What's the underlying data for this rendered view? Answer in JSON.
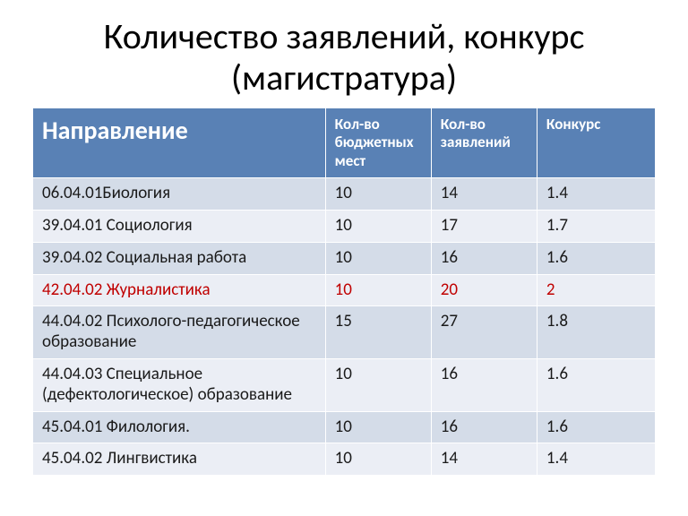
{
  "title": "Количество заявлений, конкурс (магистратура)",
  "table": {
    "columns": [
      "Направление",
      "Кол-во бюджетных мест",
      "Кол-во заявлений",
      "Конкурс"
    ],
    "col_widths_pct": [
      47,
      17,
      17,
      19
    ],
    "header_bg": "#5981b5",
    "header_fg": "#ffffff",
    "header_first_fontsize": 28,
    "header_rest_fontsize": 17,
    "body_fontsize": 19,
    "band_a_bg": "#d4dce8",
    "band_b_bg": "#ebeef5",
    "highlight_color": "#c00000",
    "rows": [
      {
        "cells": [
          "06.04.01Биология",
          "10",
          "14",
          "1.4"
        ],
        "band": "a",
        "highlight": false
      },
      {
        "cells": [
          "39.04.01 Социология",
          "10",
          "17",
          "1.7"
        ],
        "band": "b",
        "highlight": false
      },
      {
        "cells": [
          "39.04.02 Социальная работа",
          "10",
          "16",
          "1.6"
        ],
        "band": "a",
        "highlight": false
      },
      {
        "cells": [
          "42.04.02 Журналистика",
          "10",
          "20",
          "2"
        ],
        "band": "b",
        "highlight": true
      },
      {
        "cells": [
          "44.04.02 Психолого-педагогическое образование",
          "15",
          "27",
          "1.8"
        ],
        "band": "a",
        "highlight": false
      },
      {
        "cells": [
          "44.04.03 Специальное (дефектологическое) образование",
          "10",
          "16",
          "1.6"
        ],
        "band": "b",
        "highlight": false
      },
      {
        "cells": [
          "45.04.01 Филология.",
          "10",
          "16",
          "1.6"
        ],
        "band": "a",
        "highlight": false
      },
      {
        "cells": [
          "45.04.02 Лингвистика",
          "10",
          "14",
          "1.4"
        ],
        "band": "b",
        "highlight": false
      }
    ]
  }
}
